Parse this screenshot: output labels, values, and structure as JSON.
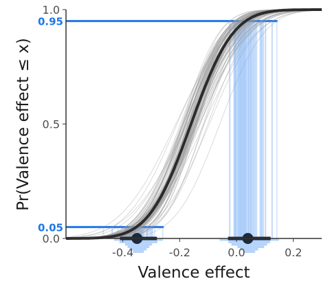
{
  "colors": {
    "accent": "#1f77e8",
    "accent_light": "#a9cdfb",
    "sample_curve": "#9a9a9a",
    "main_curve": "#2b2b2b",
    "axis": "#333333",
    "tick_text": "#4d4d4d"
  },
  "chart_data": {
    "type": "line",
    "title": "",
    "xlabel": "Valence effect",
    "ylabel": "Pr(Valence effect ≤ x)",
    "xlim": [
      -0.6,
      0.3
    ],
    "ylim": [
      0,
      1
    ],
    "x_ticks": [
      -0.4,
      -0.2,
      0.0,
      0.2
    ],
    "x_tick_labels": [
      "-0.4",
      "-0.2",
      "0.0",
      "0.2"
    ],
    "y_ticks": [
      0,
      0.5,
      1
    ],
    "y_tick_labels": [
      "0.0",
      "0.5",
      "1.0"
    ],
    "grid": false,
    "main_cdf": {
      "distribution": "normal",
      "mean": -0.16,
      "sd": 0.117
    },
    "sample_cdf_count": 80,
    "reference_levels": [
      {
        "p": 0.05,
        "label": "0.05",
        "quantile": -0.35
      },
      {
        "p": 0.95,
        "label": "0.95",
        "quantile": 0.04
      }
    ],
    "quantile_intervals": [
      {
        "p": 0.05,
        "point": -0.35,
        "interval": [
          -0.41,
          -0.28
        ]
      },
      {
        "p": 0.95,
        "point": 0.04,
        "interval": [
          -0.03,
          0.12
        ]
      }
    ]
  }
}
